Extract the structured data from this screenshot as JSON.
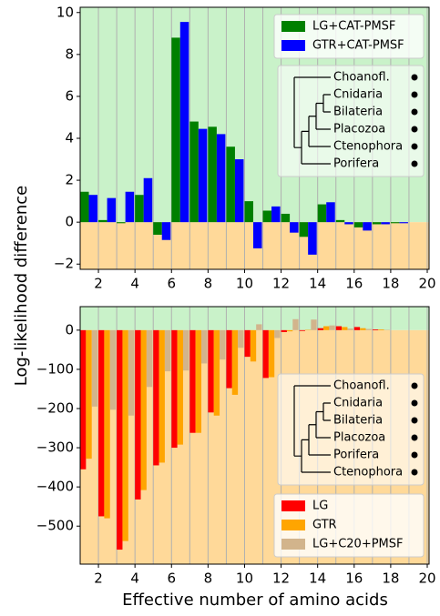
{
  "chart_data": [
    {
      "type": "bar",
      "ylabel": "Log-likelihood difference",
      "x": [
        1,
        2,
        3,
        4,
        5,
        6,
        7,
        8,
        9,
        10,
        11,
        12,
        13,
        14,
        15,
        16,
        17,
        18
      ],
      "series": [
        {
          "name": "LG+CAT-PMSF",
          "color": "#008000",
          "values": [
            1.45,
            0.1,
            -0.05,
            1.3,
            -0.6,
            8.8,
            4.8,
            4.55,
            3.6,
            1.0,
            0.55,
            0.4,
            -0.7,
            0.85,
            0.1,
            -0.25,
            -0.1,
            -0.05
          ]
        },
        {
          "name": "GTR+CAT-PMSF",
          "color": "#0000ff",
          "values": [
            1.3,
            1.15,
            1.45,
            2.1,
            -0.85,
            9.55,
            4.45,
            4.2,
            3.0,
            -1.25,
            0.75,
            -0.5,
            -1.55,
            0.95,
            -0.1,
            -0.4,
            -0.1,
            -0.05
          ]
        }
      ],
      "xlim": [
        1,
        20.1
      ],
      "xticks": [
        2,
        4,
        6,
        8,
        10,
        12,
        14,
        16,
        18,
        20
      ],
      "ylim": [
        -2.25,
        10.25
      ],
      "yticks": [
        {
          "value": -2,
          "label": "−2"
        },
        0,
        2,
        4,
        6,
        8,
        10
      ],
      "grid": true,
      "legend": "upper right",
      "inset_tree": {
        "taxa": [
          "Choanofl.",
          "Cnidaria",
          "Bilateria",
          "Placozoa",
          "Ctenophora",
          "Porifera"
        ]
      }
    },
    {
      "type": "bar",
      "xlabel": "Effective number of amino acids",
      "x": [
        1,
        2,
        3,
        4,
        5,
        6,
        7,
        8,
        9,
        10,
        11,
        12,
        13,
        14,
        15,
        16,
        17
      ],
      "series": [
        {
          "name": "LG",
          "color": "#ff0000",
          "values": [
            -355,
            -475,
            -560,
            -432,
            -345,
            -300,
            -262,
            -210,
            -148,
            -68,
            -122,
            -5,
            -2,
            5,
            10,
            8,
            2
          ]
        },
        {
          "name": "GTR",
          "color": "#ffa500",
          "values": [
            -328,
            -480,
            -538,
            -408,
            -338,
            -292,
            -262,
            -218,
            -165,
            -80,
            -120,
            -3,
            1,
            10,
            8,
            5,
            2
          ]
        },
        {
          "name": "LG+C20+PMSF",
          "color": "#d2b48c",
          "values": [
            -195,
            -203,
            -218,
            -145,
            -105,
            -103,
            -85,
            -75,
            -45,
            15,
            -20,
            28,
            27,
            12,
            4,
            3,
            1
          ]
        }
      ],
      "xlim": [
        1,
        20.1
      ],
      "xticks": [
        2,
        4,
        6,
        8,
        10,
        12,
        14,
        16,
        18,
        20
      ],
      "ylim": [
        -597,
        60
      ],
      "yticks": [
        {
          "value": -500,
          "label": "−500"
        },
        {
          "value": -400,
          "label": "−400"
        },
        {
          "value": -300,
          "label": "−300"
        },
        {
          "value": -200,
          "label": "−200"
        },
        {
          "value": -100,
          "label": "−100"
        },
        0
      ],
      "grid": true,
      "legend": "lower right",
      "inset_tree": {
        "taxa": [
          "Choanofl.",
          "Cnidaria",
          "Bilateria",
          "Placozoa",
          "Porifera",
          "Ctenophora"
        ]
      }
    }
  ]
}
